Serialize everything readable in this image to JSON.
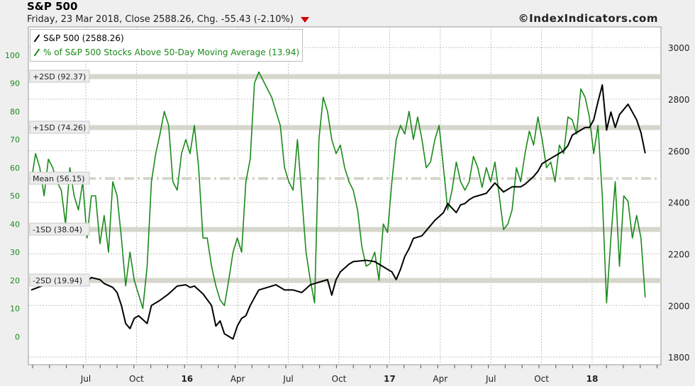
{
  "header": {
    "title": "S&P 500",
    "subtitle": "Friday, 23 Mar 2018, Close 2588.26, Chg. -55.43 (-2.10%)",
    "copyright": "©IndexIndicators.com"
  },
  "colors": {
    "spx": "#000000",
    "breadth": "#1a8a1a",
    "band": "#d6d6cc",
    "grid": "#bfbfbf",
    "left_axis_text": "#1a8a1a",
    "down_marker": "#d00000"
  },
  "chart_data": {
    "type": "line",
    "grid": true,
    "legend_position": "top-left",
    "x_tick_labels": [
      "Jul",
      "Oct",
      "16",
      "Apr",
      "Jul",
      "Oct",
      "17",
      "Apr",
      "Jul",
      "Oct",
      "18"
    ],
    "left_axis": {
      "ticks": [
        0,
        10,
        20,
        30,
        40,
        50,
        60,
        70,
        80,
        90,
        100
      ],
      "range": [
        -10,
        110
      ]
    },
    "right_axis": {
      "ticks": [
        1800,
        2000,
        2200,
        2400,
        2600,
        2800,
        3000
      ],
      "range": [
        1770,
        3080
      ]
    },
    "bands": [
      {
        "label": "+2SD (92.37)",
        "value": 92.37,
        "style": "solid"
      },
      {
        "label": "+1SD (74.26)",
        "value": 74.26,
        "style": "solid"
      },
      {
        "label": "Mean (56.15)",
        "value": 56.15,
        "style": "dashdot"
      },
      {
        "label": "-1SD (38.04)",
        "value": 38.04,
        "style": "solid"
      },
      {
        "label": "-2SD (19.94)",
        "value": 19.94,
        "style": "solid"
      }
    ],
    "series": [
      {
        "name": "S&P 500 (2588.26)",
        "axis": "right",
        "points": [
          [
            0,
            2060
          ],
          [
            4,
            2085
          ],
          [
            6,
            2090
          ],
          [
            10,
            2095
          ],
          [
            11,
            2100
          ],
          [
            12,
            2080
          ],
          [
            14,
            2108
          ],
          [
            16,
            2100
          ],
          [
            17,
            2085
          ],
          [
            19,
            2070
          ],
          [
            20,
            2050
          ],
          [
            21,
            2000
          ],
          [
            22,
            1930
          ],
          [
            23,
            1910
          ],
          [
            24,
            1950
          ],
          [
            25,
            1960
          ],
          [
            27,
            1930
          ],
          [
            28,
            2000
          ],
          [
            30,
            2020
          ],
          [
            32,
            2045
          ],
          [
            34,
            2075
          ],
          [
            36,
            2080
          ],
          [
            37,
            2070
          ],
          [
            38,
            2075
          ],
          [
            40,
            2045
          ],
          [
            42,
            2000
          ],
          [
            43,
            1920
          ],
          [
            44,
            1940
          ],
          [
            45,
            1890
          ],
          [
            46,
            1880
          ],
          [
            47,
            1870
          ],
          [
            48,
            1920
          ],
          [
            49,
            1950
          ],
          [
            50,
            1960
          ],
          [
            51,
            2000
          ],
          [
            52,
            2030
          ],
          [
            53,
            2060
          ],
          [
            55,
            2070
          ],
          [
            57,
            2080
          ],
          [
            59,
            2060
          ],
          [
            61,
            2060
          ],
          [
            63,
            2050
          ],
          [
            65,
            2080
          ],
          [
            67,
            2090
          ],
          [
            69,
            2100
          ],
          [
            70,
            2040
          ],
          [
            71,
            2100
          ],
          [
            72,
            2130
          ],
          [
            74,
            2160
          ],
          [
            75,
            2170
          ],
          [
            78,
            2175
          ],
          [
            80,
            2170
          ],
          [
            81,
            2160
          ],
          [
            82,
            2150
          ],
          [
            83,
            2140
          ],
          [
            84,
            2130
          ],
          [
            85,
            2100
          ],
          [
            86,
            2140
          ],
          [
            87,
            2190
          ],
          [
            88,
            2220
          ],
          [
            89,
            2260
          ],
          [
            91,
            2270
          ],
          [
            92,
            2290
          ],
          [
            94,
            2330
          ],
          [
            96,
            2360
          ],
          [
            97,
            2395
          ],
          [
            99,
            2360
          ],
          [
            100,
            2390
          ],
          [
            101,
            2395
          ],
          [
            102,
            2410
          ],
          [
            103,
            2420
          ],
          [
            104,
            2425
          ],
          [
            106,
            2435
          ],
          [
            108,
            2475
          ],
          [
            110,
            2440
          ],
          [
            112,
            2460
          ],
          [
            114,
            2460
          ],
          [
            115,
            2470
          ],
          [
            117,
            2500
          ],
          [
            118,
            2520
          ],
          [
            119,
            2550
          ],
          [
            120,
            2560
          ],
          [
            121,
            2570
          ],
          [
            122,
            2580
          ],
          [
            124,
            2600
          ],
          [
            125,
            2620
          ],
          [
            126,
            2660
          ],
          [
            128,
            2680
          ],
          [
            129,
            2690
          ],
          [
            130,
            2690
          ],
          [
            131,
            2720
          ],
          [
            132,
            2790
          ],
          [
            133,
            2855
          ],
          [
            134,
            2680
          ],
          [
            135,
            2750
          ],
          [
            136,
            2690
          ],
          [
            137,
            2740
          ],
          [
            139,
            2780
          ],
          [
            140,
            2750
          ],
          [
            141,
            2720
          ],
          [
            142,
            2670
          ],
          [
            143,
            2590
          ]
        ]
      },
      {
        "name": "% of S&P 500 Stocks Above 50-Day Moving Average (13.94)",
        "axis": "left",
        "points": [
          [
            0,
            55
          ],
          [
            1,
            65
          ],
          [
            2,
            60
          ],
          [
            3,
            50
          ],
          [
            4,
            63
          ],
          [
            5,
            60
          ],
          [
            6,
            55
          ],
          [
            7,
            52
          ],
          [
            8,
            40
          ],
          [
            9,
            60
          ],
          [
            10,
            50
          ],
          [
            11,
            45
          ],
          [
            12,
            55
          ],
          [
            13,
            35
          ],
          [
            14,
            50
          ],
          [
            15,
            50
          ],
          [
            16,
            33
          ],
          [
            17,
            43
          ],
          [
            18,
            30
          ],
          [
            19,
            55
          ],
          [
            20,
            50
          ],
          [
            21,
            35
          ],
          [
            22,
            18
          ],
          [
            23,
            30
          ],
          [
            24,
            20
          ],
          [
            25,
            15
          ],
          [
            26,
            10
          ],
          [
            27,
            25
          ],
          [
            28,
            55
          ],
          [
            29,
            65
          ],
          [
            30,
            72
          ],
          [
            31,
            80
          ],
          [
            32,
            75
          ],
          [
            33,
            55
          ],
          [
            34,
            52
          ],
          [
            35,
            65
          ],
          [
            36,
            70
          ],
          [
            37,
            65
          ],
          [
            38,
            75
          ],
          [
            39,
            60
          ],
          [
            40,
            35
          ],
          [
            41,
            35
          ],
          [
            42,
            25
          ],
          [
            43,
            18
          ],
          [
            44,
            13
          ],
          [
            45,
            11
          ],
          [
            46,
            20
          ],
          [
            47,
            30
          ],
          [
            48,
            35
          ],
          [
            49,
            30
          ],
          [
            50,
            55
          ],
          [
            51,
            63
          ],
          [
            52,
            90
          ],
          [
            53,
            94
          ],
          [
            54,
            91
          ],
          [
            55,
            88
          ],
          [
            56,
            85
          ],
          [
            57,
            80
          ],
          [
            58,
            75
          ],
          [
            59,
            60
          ],
          [
            60,
            55
          ],
          [
            61,
            52
          ],
          [
            62,
            70
          ],
          [
            63,
            50
          ],
          [
            64,
            30
          ],
          [
            65,
            20
          ],
          [
            66,
            12
          ],
          [
            67,
            70
          ],
          [
            68,
            85
          ],
          [
            69,
            80
          ],
          [
            70,
            70
          ],
          [
            71,
            65
          ],
          [
            72,
            68
          ],
          [
            73,
            60
          ],
          [
            74,
            55
          ],
          [
            75,
            52
          ],
          [
            76,
            45
          ],
          [
            77,
            32
          ],
          [
            78,
            25
          ],
          [
            79,
            26
          ],
          [
            80,
            30
          ],
          [
            81,
            20
          ],
          [
            82,
            40
          ],
          [
            83,
            37
          ],
          [
            84,
            55
          ],
          [
            85,
            70
          ],
          [
            86,
            75
          ],
          [
            87,
            72
          ],
          [
            88,
            80
          ],
          [
            89,
            70
          ],
          [
            90,
            78
          ],
          [
            91,
            70
          ],
          [
            92,
            60
          ],
          [
            93,
            62
          ],
          [
            94,
            70
          ],
          [
            95,
            75
          ],
          [
            96,
            60
          ],
          [
            97,
            45
          ],
          [
            98,
            52
          ],
          [
            99,
            62
          ],
          [
            100,
            55
          ],
          [
            101,
            52
          ],
          [
            102,
            55
          ],
          [
            103,
            64
          ],
          [
            104,
            60
          ],
          [
            105,
            53
          ],
          [
            106,
            60
          ],
          [
            107,
            55
          ],
          [
            108,
            62
          ],
          [
            109,
            50
          ],
          [
            110,
            38
          ],
          [
            111,
            40
          ],
          [
            112,
            45
          ],
          [
            113,
            60
          ],
          [
            114,
            55
          ],
          [
            115,
            65
          ],
          [
            116,
            73
          ],
          [
            117,
            68
          ],
          [
            118,
            78
          ],
          [
            119,
            70
          ],
          [
            120,
            60
          ],
          [
            121,
            62
          ],
          [
            122,
            55
          ],
          [
            123,
            68
          ],
          [
            124,
            65
          ],
          [
            125,
            78
          ],
          [
            126,
            77
          ],
          [
            127,
            72
          ],
          [
            128,
            88
          ],
          [
            129,
            85
          ],
          [
            130,
            78
          ],
          [
            131,
            65
          ],
          [
            132,
            75
          ],
          [
            133,
            50
          ],
          [
            134,
            12
          ],
          [
            135,
            35
          ],
          [
            136,
            55
          ],
          [
            137,
            25
          ],
          [
            138,
            50
          ],
          [
            139,
            48
          ],
          [
            140,
            35
          ],
          [
            141,
            43
          ],
          [
            142,
            35
          ],
          [
            143,
            13.94
          ]
        ]
      }
    ]
  }
}
